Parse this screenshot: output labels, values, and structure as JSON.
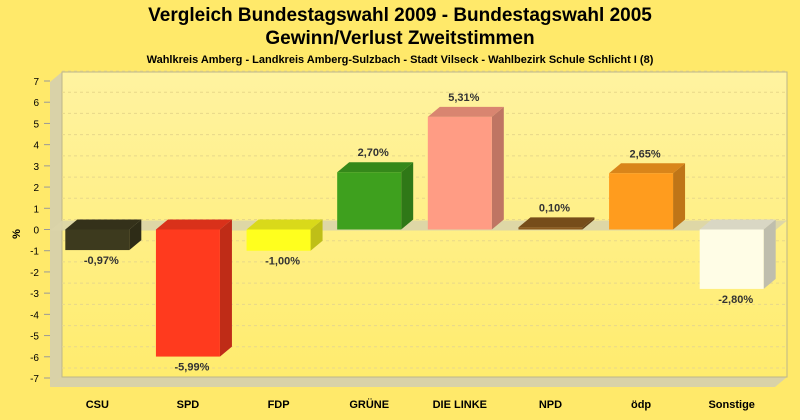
{
  "chart_data": {
    "type": "bar",
    "title": "Vergleich Bundestagswahl 2009 - Bundestagswahl 2005",
    "title_line2": "Gewinn/Verlust Zweitstimmen",
    "subtitle": "Wahlkreis Amberg - Landkreis Amberg-Sulzbach - Stadt Vilseck - Wahlbezirk Schule Schlicht I (8)",
    "ylabel": "%",
    "ylim": [
      -7,
      7
    ],
    "yticks": [
      7,
      6,
      5,
      4,
      3,
      2,
      1,
      0,
      -1,
      -2,
      -3,
      -4,
      -5,
      -6,
      -7
    ],
    "grid": true,
    "categories": [
      "CSU",
      "SPD",
      "FDP",
      "GRÜNE",
      "DIE LINKE",
      "NPD",
      "ödp",
      "Sonstige"
    ],
    "values": [
      -0.97,
      -5.99,
      -1.0,
      2.7,
      5.31,
      0.1,
      2.65,
      -2.8
    ],
    "value_labels": [
      "-0,97%",
      "-5,99%",
      "-1,00%",
      "2,70%",
      "5,31%",
      "0,10%",
      "2,65%",
      "-2,80%"
    ],
    "colors": [
      "#3D3A1E",
      "#FF3A1E",
      "#FFFF1E",
      "#3EA01E",
      "#FF9C84",
      "#8B5A1E",
      "#FF9C1E",
      "#FFFDE6"
    ]
  }
}
